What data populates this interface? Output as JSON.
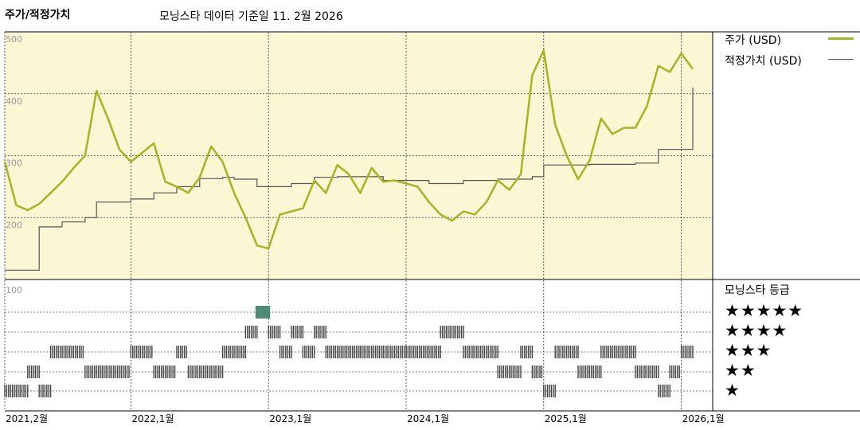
{
  "header": {
    "left_title": "주가/적정가치",
    "date_note": "모닝스타 데이터 기준일 11. 2월 2026"
  },
  "legend": {
    "price_label": "주가 (USD)",
    "fair_label": "적정가치 (USD)",
    "rating_title": "모닝스타 등급"
  },
  "colors": {
    "price_line": "#a8b52a",
    "fair_line": "#555555",
    "plot_bg": "#fbf6d4",
    "rating_bar": "#444444",
    "rating_highlight": "#4e8a74"
  },
  "chart_data": {
    "type": "line",
    "x_axis": {
      "tick_labels": [
        "2021,2월",
        "2022,1월",
        "2023,1월",
        "2024,1월",
        "2025,1월",
        "2026,1월"
      ],
      "tick_dates": [
        "2021-02",
        "2022-01",
        "2023-01",
        "2024-01",
        "2025-01",
        "2026-01"
      ],
      "range": [
        "2021-02",
        "2026-02"
      ]
    },
    "y_axis": {
      "tick_labels": [
        "500",
        "400",
        "300",
        "200",
        "100"
      ],
      "tick_values": [
        500,
        400,
        300,
        200,
        100
      ],
      "range": [
        100,
        500
      ]
    },
    "grid": true,
    "series": [
      {
        "name": "주가 (USD)",
        "x": [
          "2021-02",
          "2021-03",
          "2021-04",
          "2021-05",
          "2021-06",
          "2021-07",
          "2021-08",
          "2021-09",
          "2021-10",
          "2021-11",
          "2021-12",
          "2022-01",
          "2022-02",
          "2022-03",
          "2022-04",
          "2022-05",
          "2022-06",
          "2022-07",
          "2022-08",
          "2022-09",
          "2022-10",
          "2022-11",
          "2022-12",
          "2023-01",
          "2023-02",
          "2023-03",
          "2023-04",
          "2023-05",
          "2023-06",
          "2023-07",
          "2023-08",
          "2023-09",
          "2023-10",
          "2023-11",
          "2023-12",
          "2024-01",
          "2024-02",
          "2024-03",
          "2024-04",
          "2024-05",
          "2024-06",
          "2024-07",
          "2024-08",
          "2024-09",
          "2024-10",
          "2024-11",
          "2024-12",
          "2025-01",
          "2025-02",
          "2025-03",
          "2025-04",
          "2025-05",
          "2025-06",
          "2025-07",
          "2025-08",
          "2025-09",
          "2025-10",
          "2025-11",
          "2025-12",
          "2026-01",
          "2026-02"
        ],
        "y": [
          290,
          220,
          212,
          222,
          240,
          258,
          280,
          300,
          405,
          360,
          310,
          290,
          305,
          320,
          258,
          250,
          240,
          265,
          315,
          290,
          240,
          200,
          155,
          150,
          205,
          210,
          215,
          260,
          240,
          285,
          270,
          240,
          280,
          258,
          260,
          255,
          250,
          225,
          205,
          195,
          210,
          205,
          225,
          260,
          245,
          270,
          430,
          470,
          350,
          300,
          262,
          292,
          360,
          335,
          345,
          345,
          380,
          445,
          435,
          465,
          440
        ]
      },
      {
        "name": "적정가치 (USD)",
        "x": [
          "2021-02",
          "2021-04",
          "2021-05",
          "2021-07",
          "2021-09",
          "2021-10",
          "2022-01",
          "2022-03",
          "2022-05",
          "2022-07",
          "2022-09",
          "2022-10",
          "2022-12",
          "2023-03",
          "2023-05",
          "2023-07",
          "2023-09",
          "2023-11",
          "2023-12",
          "2024-01",
          "2024-03",
          "2024-04",
          "2024-06",
          "2024-09",
          "2024-12",
          "2025-01",
          "2025-05",
          "2025-09",
          "2025-11",
          "2026-01",
          "2026-02"
        ],
        "y": [
          115,
          115,
          185,
          193,
          200,
          225,
          230,
          240,
          250,
          263,
          265,
          262,
          250,
          255,
          265,
          266,
          266,
          260,
          260,
          260,
          255,
          255,
          260,
          262,
          266,
          285,
          286,
          288,
          310,
          310,
          410
        ]
      }
    ]
  },
  "rating_chart": {
    "title": "모닝스타 등급",
    "levels": [
      "★★★★★",
      "★★★★",
      "★★★",
      "★★",
      "★"
    ],
    "timeline_x": [
      "2021-02",
      "2021-04",
      "2021-05",
      "2021-06",
      "2021-09",
      "2022-01",
      "2022-03",
      "2022-05",
      "2022-06",
      "2022-09",
      "2022-11",
      "2022-12",
      "2023-01",
      "2023-02",
      "2023-03",
      "2023-04",
      "2023-05",
      "2023-06",
      "2023-09",
      "2023-11",
      "2024-01",
      "2024-04",
      "2024-06",
      "2024-09",
      "2024-11",
      "2024-12",
      "2025-01",
      "2025-02",
      "2025-04",
      "2025-06",
      "2025-09",
      "2025-11",
      "2025-12",
      "2026-01"
    ],
    "timeline_rating": [
      1,
      2,
      1,
      3,
      2,
      3,
      2,
      3,
      2,
      3,
      4,
      5,
      4,
      3,
      4,
      3,
      4,
      3,
      3,
      3,
      3,
      4,
      3,
      2,
      3,
      2,
      1,
      3,
      2,
      3,
      2,
      1,
      2,
      3
    ]
  }
}
